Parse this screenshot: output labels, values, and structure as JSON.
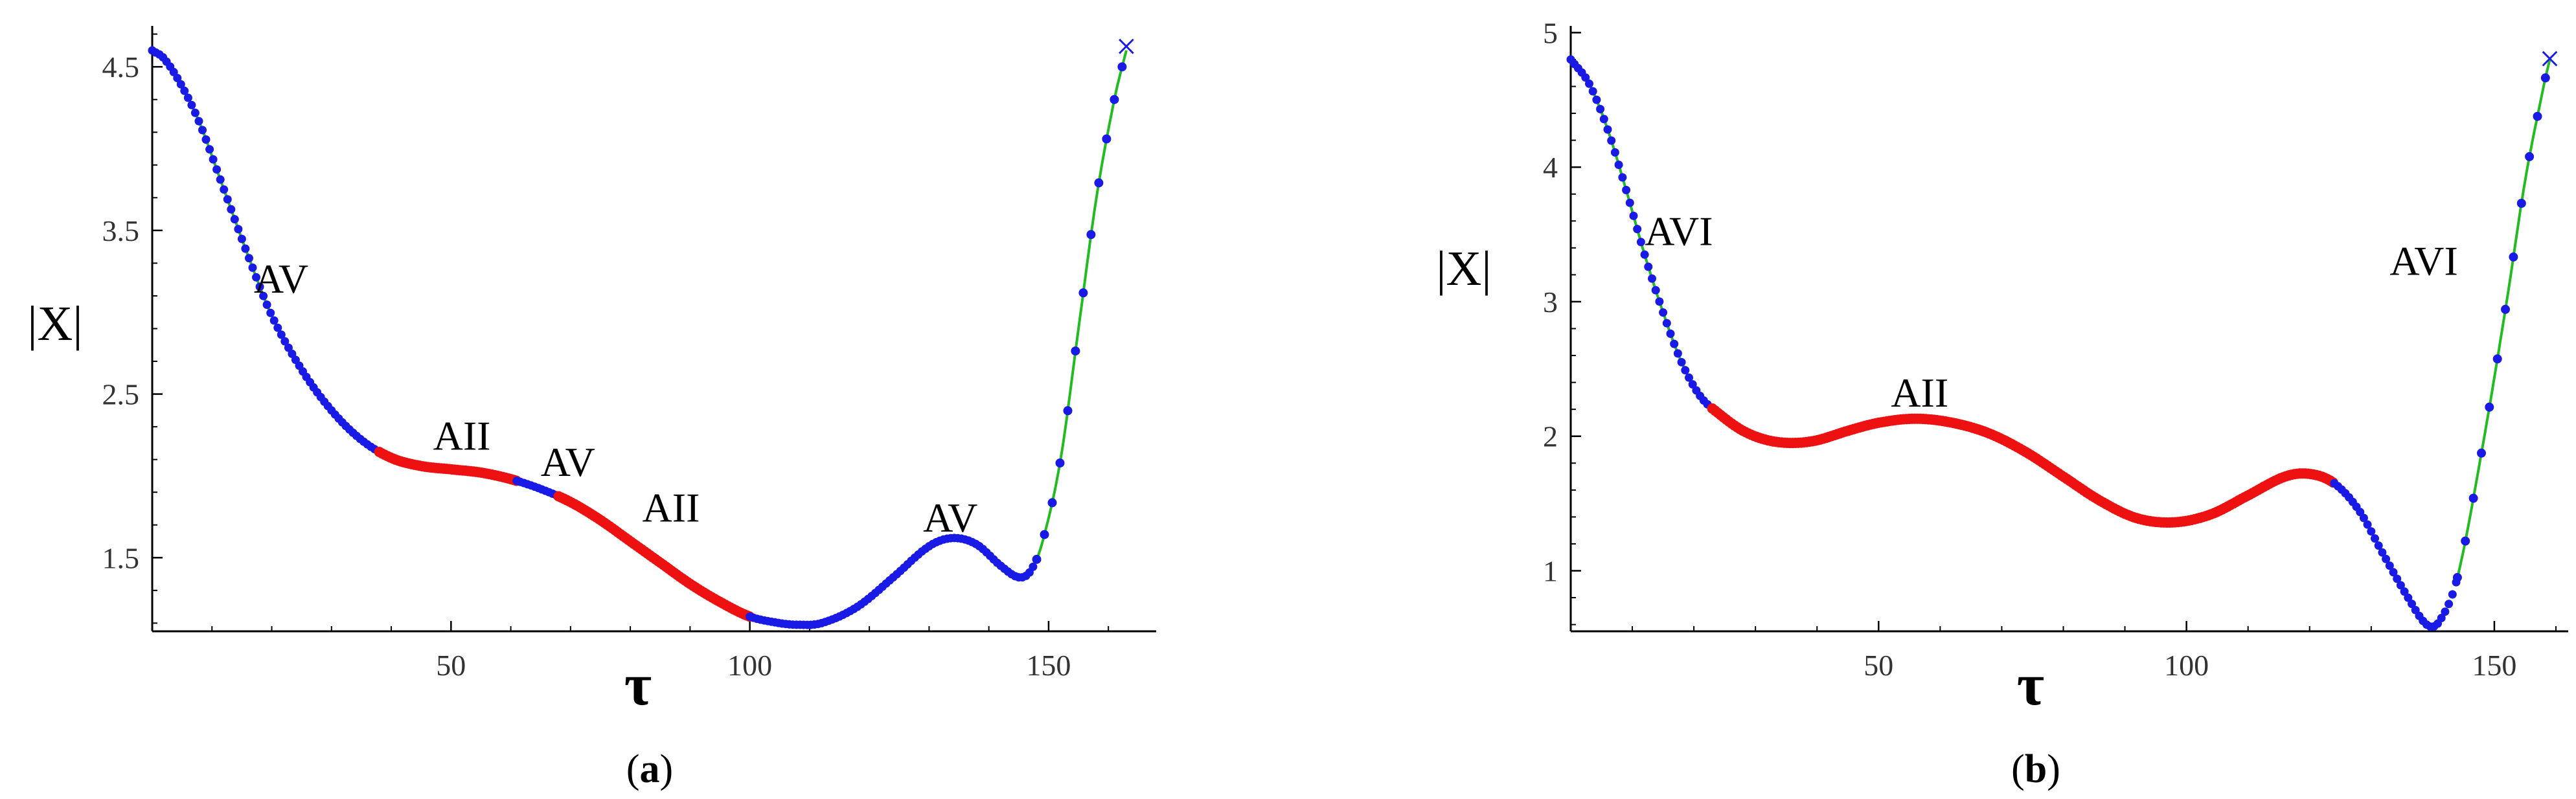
{
  "figure": {
    "colors": {
      "blue": "#1a1ae6",
      "red": "#ee1111",
      "green": "#22bb22",
      "axis": "#000000",
      "tick_text": "#333333"
    }
  },
  "chart_data": [
    {
      "type": "line",
      "panel": "a",
      "panel_label": {
        "open": "(",
        "letter": "a",
        "close": ")"
      },
      "xlabel": "τ",
      "ylabel": "|X|",
      "x_ticks": [
        50,
        100,
        150
      ],
      "y_ticks": [
        1.5,
        2.5,
        3.5,
        4.5
      ],
      "xlim": [
        0,
        168
      ],
      "ylim": [
        1.05,
        4.75
      ],
      "points": [
        [
          0,
          4.6
        ],
        [
          2,
          4.55
        ],
        [
          5,
          4.38
        ],
        [
          8,
          4.15
        ],
        [
          12,
          3.75
        ],
        [
          16,
          3.35
        ],
        [
          20,
          2.98
        ],
        [
          25,
          2.65
        ],
        [
          30,
          2.4
        ],
        [
          35,
          2.22
        ],
        [
          40,
          2.11
        ],
        [
          45,
          2.06
        ],
        [
          50,
          2.04
        ],
        [
          55,
          2.02
        ],
        [
          60,
          1.98
        ],
        [
          65,
          1.92
        ],
        [
          70,
          1.84
        ],
        [
          75,
          1.73
        ],
        [
          80,
          1.6
        ],
        [
          85,
          1.47
        ],
        [
          90,
          1.34
        ],
        [
          95,
          1.23
        ],
        [
          100,
          1.14
        ],
        [
          105,
          1.1
        ],
        [
          108,
          1.09
        ],
        [
          112,
          1.1
        ],
        [
          118,
          1.2
        ],
        [
          124,
          1.38
        ],
        [
          130,
          1.57
        ],
        [
          134,
          1.62
        ],
        [
          138,
          1.58
        ],
        [
          142,
          1.45
        ],
        [
          145,
          1.38
        ],
        [
          147,
          1.42
        ],
        [
          149,
          1.6
        ],
        [
          152,
          2.1
        ],
        [
          155,
          2.9
        ],
        [
          158,
          3.7
        ],
        [
          161,
          4.3
        ],
        [
          163,
          4.6
        ]
      ],
      "segments": [
        {
          "x": [
            0,
            38
          ],
          "color": "blue",
          "marker": "dots",
          "line": "green"
        },
        {
          "x": [
            38,
            61
          ],
          "color": "red",
          "marker": "dots"
        },
        {
          "x": [
            61,
            68
          ],
          "color": "blue",
          "marker": "dots"
        },
        {
          "x": [
            68,
            100
          ],
          "color": "red",
          "marker": "dots"
        },
        {
          "x": [
            100,
            148
          ],
          "color": "blue",
          "marker": "dots"
        },
        {
          "x": [
            148,
            163
          ],
          "color": "blue",
          "marker": "sparse",
          "line": "green"
        }
      ],
      "end_marker": {
        "x": 163,
        "y": 4.62,
        "symbol": "×"
      },
      "annotations": [
        {
          "text": "AV",
          "x": 17,
          "y": 3.12
        },
        {
          "text": "AII",
          "x": 47,
          "y": 2.16
        },
        {
          "text": "AV",
          "x": 65,
          "y": 2.0
        },
        {
          "text": "AII",
          "x": 82,
          "y": 1.72
        },
        {
          "text": "AV",
          "x": 129,
          "y": 1.66
        }
      ]
    },
    {
      "type": "line",
      "panel": "b",
      "panel_label": {
        "open": "(",
        "letter": "b",
        "close": ")"
      },
      "xlabel": "τ",
      "ylabel": "|X|",
      "x_ticks": [
        50,
        100,
        150
      ],
      "y_ticks": [
        1,
        2,
        3,
        4,
        5
      ],
      "xlim": [
        0,
        162
      ],
      "ylim": [
        0.55,
        5.05
      ],
      "points": [
        [
          0,
          4.8
        ],
        [
          3,
          4.62
        ],
        [
          6,
          4.28
        ],
        [
          9,
          3.83
        ],
        [
          12,
          3.35
        ],
        [
          15,
          2.92
        ],
        [
          18,
          2.55
        ],
        [
          21,
          2.3
        ],
        [
          24,
          2.17
        ],
        [
          28,
          2.04
        ],
        [
          32,
          1.97
        ],
        [
          36,
          1.95
        ],
        [
          40,
          1.97
        ],
        [
          45,
          2.04
        ],
        [
          50,
          2.1
        ],
        [
          56,
          2.13
        ],
        [
          62,
          2.1
        ],
        [
          68,
          2.02
        ],
        [
          74,
          1.88
        ],
        [
          80,
          1.7
        ],
        [
          86,
          1.52
        ],
        [
          92,
          1.39
        ],
        [
          98,
          1.36
        ],
        [
          104,
          1.42
        ],
        [
          110,
          1.56
        ],
        [
          116,
          1.7
        ],
        [
          120,
          1.72
        ],
        [
          124,
          1.65
        ],
        [
          128,
          1.45
        ],
        [
          132,
          1.12
        ],
        [
          136,
          0.8
        ],
        [
          139,
          0.6
        ],
        [
          141,
          0.62
        ],
        [
          144,
          0.95
        ],
        [
          148,
          1.9
        ],
        [
          152,
          3.0
        ],
        [
          155,
          3.9
        ],
        [
          158,
          4.6
        ],
        [
          159,
          4.8
        ]
      ],
      "segments": [
        {
          "x": [
            0,
            23
          ],
          "color": "blue",
          "marker": "dots",
          "line": "green"
        },
        {
          "x": [
            23,
            124
          ],
          "color": "red",
          "marker": "dots"
        },
        {
          "x": [
            124,
            144
          ],
          "color": "blue",
          "marker": "dots"
        },
        {
          "x": [
            144,
            159
          ],
          "color": "blue",
          "marker": "sparse",
          "line": "green"
        }
      ],
      "end_marker": {
        "x": 159,
        "y": 4.8,
        "symbol": "×"
      },
      "annotations": [
        {
          "text": "AVI",
          "x": 12,
          "y": 3.42
        },
        {
          "text": "AII",
          "x": 52,
          "y": 2.22
        },
        {
          "text": "AVI",
          "x": 133,
          "y": 3.2
        }
      ]
    }
  ]
}
